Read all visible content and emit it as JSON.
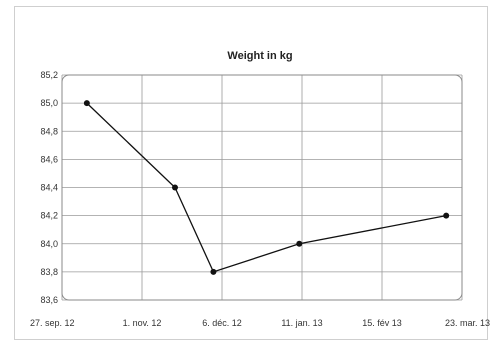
{
  "chart_data": {
    "type": "line",
    "title": "Weight in kg",
    "xlabel": "",
    "ylabel": "",
    "x_tick_labels": [
      "27. sep. 12",
      "1. nov. 12",
      "6. déc. 12",
      "11. jan. 13",
      "15. fév 13",
      "23. mar. 13"
    ],
    "y_tick_labels": [
      "85,2",
      "85,0",
      "84,8",
      "84,6",
      "84,4",
      "84,2",
      "84,0",
      "83,8",
      "83,6"
    ],
    "ylim": [
      83.6,
      85.2
    ],
    "xlim": [
      "2012-09-27",
      "2013-03-23"
    ],
    "grid": true,
    "series": [
      {
        "color": "#111111",
        "points": [
          {
            "x": "2012-10-08",
            "y": 85.0
          },
          {
            "x": "2012-11-16",
            "y": 84.4
          },
          {
            "x": "2012-12-03",
            "y": 83.8
          },
          {
            "x": "2013-01-10",
            "y": 84.0
          },
          {
            "x": "2013-03-16",
            "y": 84.2
          }
        ]
      }
    ]
  }
}
